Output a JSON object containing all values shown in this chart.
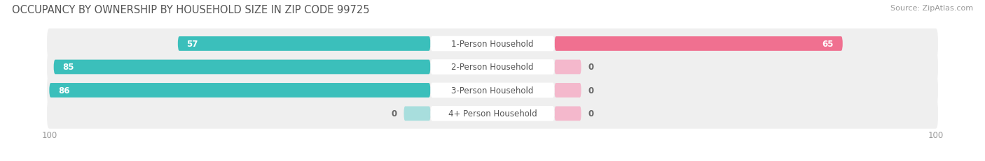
{
  "title": "OCCUPANCY BY OWNERSHIP BY HOUSEHOLD SIZE IN ZIP CODE 99725",
  "source": "Source: ZipAtlas.com",
  "categories": [
    "1-Person Household",
    "2-Person Household",
    "3-Person Household",
    "4+ Person Household"
  ],
  "owner_values": [
    57,
    85,
    86,
    0
  ],
  "renter_values": [
    65,
    0,
    0,
    0
  ],
  "owner_color": "#3bbfbb",
  "renter_color": "#f07090",
  "owner_color_light": "#a8dedd",
  "renter_color_light": "#f4b8cc",
  "row_bg_color": "#efefef",
  "axis_max": 100,
  "title_fontsize": 10.5,
  "source_fontsize": 8,
  "value_fontsize": 8.5,
  "label_fontsize": 8.5,
  "tick_fontsize": 8.5,
  "legend_fontsize": 8.5
}
